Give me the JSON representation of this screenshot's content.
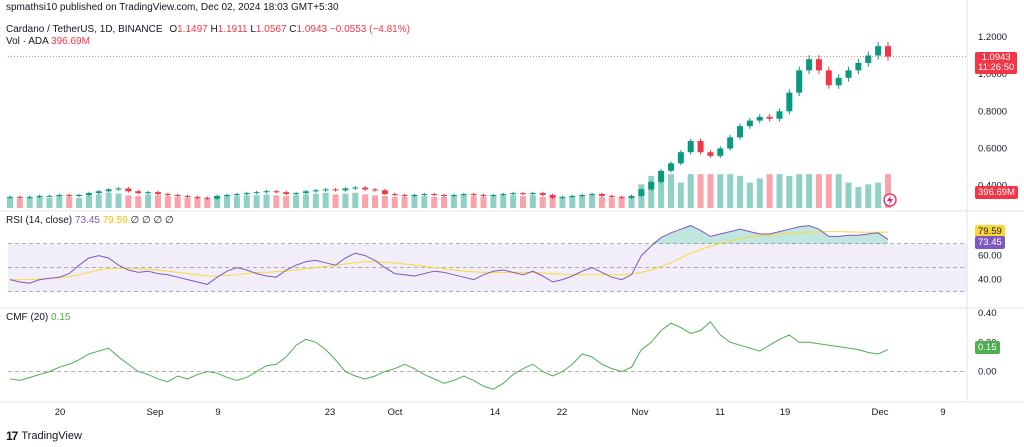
{
  "publish_line": "spmathsi10 published on TradingView.com, Dec 02, 2024 18:03 GMT+5:30",
  "symbol": {
    "name": "Cardano / TetherUS, 1D, BINANCE",
    "o_label": "O",
    "o": "1.1497",
    "h_label": "H",
    "h": "1.1911",
    "l_label": "L",
    "l": "1.0567",
    "c_label": "C",
    "c": "1.0943",
    "change": "−0.0553 (−4.81%)",
    "vol_label": "Vol · ADA",
    "vol": "396.69M"
  },
  "price_tag": {
    "price": "1.0943",
    "countdown": "11:26:50"
  },
  "vol_tag": "396.69M",
  "rsi_header": {
    "label": "RSI (14, close)",
    "v1": "73.45",
    "v2": "79.59",
    "rest": "∅ ∅ ∅ ∅"
  },
  "rsi_tags": {
    "ma": "79.59",
    "rsi": "73.45"
  },
  "cmf_header": {
    "label": "CMF (20)",
    "value": "0.15"
  },
  "cmf_tag": "0.15",
  "footer": {
    "brand": "TradingView",
    "logo": "17"
  },
  "colors": {
    "up": "#089981",
    "down": "#f23645",
    "rsi_line": "#7e57c2",
    "rsi_ma": "#fdd835",
    "cmf": "#4caf50"
  },
  "chart_data": [
    {
      "type": "candlestick",
      "title": "Cardano / TetherUS, 1D, BINANCE",
      "x_tick_labels": [
        "20",
        "Sep",
        "9",
        "23",
        "Oct",
        "14",
        "22",
        "Nov",
        "11",
        "19",
        "Dec",
        "9"
      ],
      "y_tick_labels": [
        "1.2000",
        "1.0000",
        "0.8000",
        "0.6000",
        "0.4000"
      ],
      "ylim": [
        0.28,
        1.28
      ],
      "close": [
        0.34,
        0.335,
        0.34,
        0.345,
        0.345,
        0.35,
        0.345,
        0.35,
        0.36,
        0.37,
        0.38,
        0.385,
        0.37,
        0.36,
        0.365,
        0.355,
        0.35,
        0.345,
        0.34,
        0.335,
        0.33,
        0.345,
        0.35,
        0.355,
        0.36,
        0.365,
        0.37,
        0.365,
        0.355,
        0.36,
        0.37,
        0.375,
        0.38,
        0.375,
        0.385,
        0.39,
        0.38,
        0.375,
        0.355,
        0.35,
        0.345,
        0.35,
        0.355,
        0.35,
        0.345,
        0.35,
        0.355,
        0.35,
        0.345,
        0.35,
        0.355,
        0.36,
        0.355,
        0.36,
        0.35,
        0.335,
        0.34,
        0.345,
        0.35,
        0.355,
        0.345,
        0.34,
        0.335,
        0.345,
        0.38,
        0.42,
        0.48,
        0.52,
        0.58,
        0.64,
        0.58,
        0.56,
        0.6,
        0.66,
        0.72,
        0.75,
        0.77,
        0.76,
        0.8,
        0.9,
        1.02,
        1.08,
        1.02,
        0.94,
        0.98,
        1.02,
        1.06,
        1.1,
        1.15,
        1.0943
      ],
      "volume": [
        12,
        11,
        12,
        13,
        12,
        14,
        13,
        12,
        15,
        16,
        18,
        17,
        15,
        14,
        16,
        15,
        14,
        13,
        12,
        12,
        11,
        13,
        14,
        14,
        15,
        15,
        16,
        15,
        14,
        15,
        16,
        17,
        18,
        16,
        17,
        18,
        16,
        15,
        14,
        13,
        13,
        14,
        14,
        13,
        13,
        14,
        15,
        14,
        13,
        14,
        15,
        15,
        14,
        15,
        13,
        12,
        12,
        13,
        14,
        15,
        13,
        12,
        12,
        14,
        28,
        38,
        60,
        50,
        30,
        42,
        55,
        40,
        65,
        40,
        38,
        30,
        35,
        50,
        40,
        38,
        55,
        80,
        60,
        45,
        40,
        30,
        25,
        28,
        30,
        396.69
      ],
      "series": [
        {
          "name": "Vol · ADA",
          "last": "396.69M"
        }
      ]
    },
    {
      "type": "line",
      "title": "RSI (14, close)",
      "y_tick_labels": [
        "60.00",
        "40.00"
      ],
      "ylim": [
        23,
        83
      ],
      "bands": [
        70,
        50,
        30
      ],
      "series": [
        {
          "name": "RSI",
          "values": [
            40,
            38,
            37,
            40,
            41,
            42,
            45,
            52,
            58,
            60,
            58,
            52,
            48,
            46,
            47,
            45,
            44,
            42,
            40,
            38,
            36,
            42,
            47,
            50,
            48,
            45,
            43,
            42,
            48,
            52,
            55,
            56,
            54,
            52,
            58,
            62,
            60,
            56,
            50,
            45,
            44,
            43,
            45,
            47,
            46,
            44,
            42,
            40,
            44,
            47,
            48,
            46,
            44,
            47,
            43,
            38,
            40,
            43,
            47,
            50,
            46,
            42,
            40,
            44,
            60,
            68,
            75,
            79,
            82,
            85,
            81,
            76,
            78,
            80,
            82,
            80,
            78,
            78,
            80,
            82,
            84,
            85,
            82,
            76,
            76,
            77,
            77,
            78,
            79,
            73.45
          ]
        },
        {
          "name": "MA",
          "values": [
            40,
            40,
            40,
            40.5,
            41,
            41.5,
            42.5,
            44,
            46,
            48,
            49,
            49.5,
            49.5,
            49,
            48.5,
            48,
            47,
            46,
            45,
            44,
            43,
            43,
            43.5,
            44,
            45,
            46,
            46,
            46.5,
            47,
            48,
            49,
            50,
            51,
            52,
            53,
            54,
            55,
            55,
            54.5,
            54,
            53,
            52,
            51,
            50,
            49,
            48,
            47,
            46.5,
            46,
            46,
            46,
            46,
            46,
            46,
            45.5,
            45,
            44.5,
            44,
            44,
            44,
            44,
            44,
            44,
            44.5,
            46,
            48,
            51,
            54,
            58,
            62,
            65,
            68,
            70,
            72,
            74,
            75.5,
            76.5,
            77.5,
            78,
            78.5,
            79,
            79.5,
            79.8,
            80,
            80,
            79.8,
            79.6,
            79.5,
            79.5,
            79.59
          ]
        }
      ]
    },
    {
      "type": "line",
      "title": "CMF (20)",
      "y_tick_labels": [
        "0.40",
        "0.20",
        "0.00"
      ],
      "ylim": [
        -0.18,
        0.42
      ],
      "series": [
        {
          "name": "CMF",
          "values": [
            -0.05,
            -0.06,
            -0.04,
            -0.02,
            0.0,
            0.03,
            0.05,
            0.08,
            0.12,
            0.14,
            0.16,
            0.1,
            0.05,
            0.0,
            -0.02,
            -0.05,
            -0.07,
            -0.03,
            -0.05,
            -0.02,
            0.0,
            -0.01,
            -0.04,
            -0.06,
            -0.04,
            0.0,
            0.04,
            0.05,
            0.1,
            0.18,
            0.22,
            0.2,
            0.15,
            0.08,
            0.0,
            -0.03,
            -0.05,
            -0.03,
            0.0,
            0.02,
            0.05,
            0.02,
            -0.02,
            -0.05,
            -0.08,
            -0.06,
            -0.03,
            -0.06,
            -0.1,
            -0.12,
            -0.08,
            -0.02,
            0.02,
            0.05,
            0.0,
            -0.03,
            0.0,
            0.05,
            0.12,
            0.1,
            0.05,
            0.02,
            0.0,
            0.03,
            0.15,
            0.2,
            0.28,
            0.33,
            0.3,
            0.26,
            0.28,
            0.34,
            0.25,
            0.2,
            0.18,
            0.16,
            0.14,
            0.18,
            0.22,
            0.25,
            0.2,
            0.2,
            0.19,
            0.18,
            0.17,
            0.16,
            0.15,
            0.13,
            0.12,
            0.15
          ]
        }
      ]
    }
  ]
}
